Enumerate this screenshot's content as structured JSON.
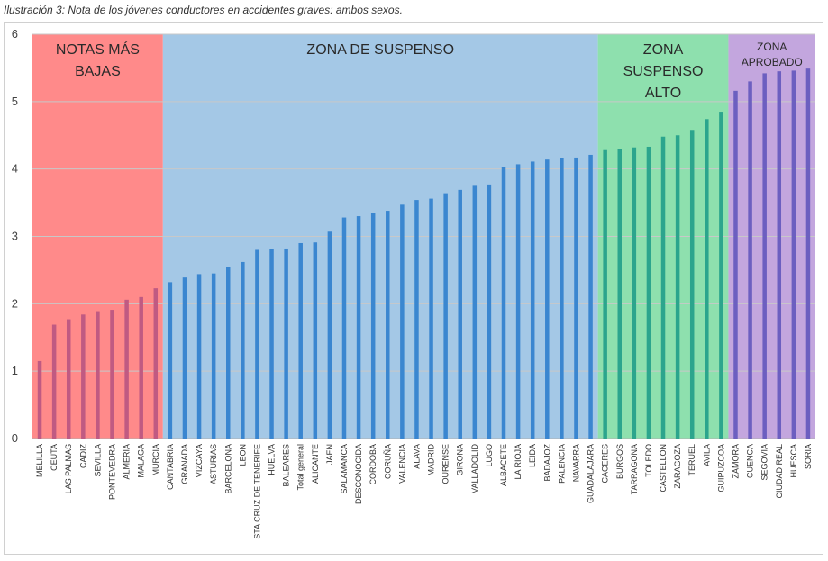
{
  "caption": "Ilustración 3: Nota de los jóvenes conductores en accidentes graves: ambos sexos.",
  "chart_data": {
    "type": "bar",
    "title": "Ilustración 3: Nota de los jóvenes conductores en accidentes graves: ambos sexos.",
    "xlabel": "",
    "ylabel": "",
    "ylim": [
      0,
      6
    ],
    "yticks": [
      0,
      1,
      2,
      3,
      4,
      5,
      6
    ],
    "grid": true,
    "categories": [
      "MELILLA",
      "CEUTA",
      "LAS PALMAS",
      "CADIZ",
      "SEVILLA",
      "PONTEVEDRA",
      "ALMERIA",
      "MALAGA",
      "MURCIA",
      "CANTABRIA",
      "GRANADA",
      "VIZCAYA",
      "ASTURIAS",
      "BARCELONA",
      "LEON",
      "STA CRUZ DE TENERIFE",
      "HUELVA",
      "BALEARES",
      "Total general",
      "ALICANTE",
      "JAEN",
      "SALAMANCA",
      "DESCONOCIDA",
      "CORDOBA",
      "CORUÑA",
      "VALENCIA",
      "ALAVA",
      "MADRID",
      "OURENSE",
      "GIRONA",
      "VALLADOLID",
      "LUGO",
      "ALBACETE",
      "LA RIOJA",
      "LEIDA",
      "BADAJOZ",
      "PALENCIA",
      "NAVARRA",
      "GUADALAJARA",
      "CACERES",
      "BURGOS",
      "TARRAGONA",
      "TOLEDO",
      "CASTELLON",
      "ZARAGOZA",
      "TERUEL",
      "AVILA",
      "GUIPUZCOA",
      "ZAMORA",
      "CUENCA",
      "SEGOVIA",
      "CIUDAD REAL",
      "HUESCA",
      "SORIA"
    ],
    "values": [
      1.15,
      1.69,
      1.77,
      1.84,
      1.89,
      1.91,
      2.06,
      2.1,
      2.23,
      2.32,
      2.39,
      2.44,
      2.45,
      2.54,
      2.62,
      2.8,
      2.81,
      2.82,
      2.9,
      2.91,
      3.07,
      3.28,
      3.3,
      3.35,
      3.38,
      3.47,
      3.54,
      3.56,
      3.64,
      3.69,
      3.75,
      3.77,
      4.03,
      4.07,
      4.11,
      4.14,
      4.16,
      4.17,
      4.21,
      4.28,
      4.3,
      4.32,
      4.33,
      4.48,
      4.5,
      4.58,
      4.74,
      4.85,
      5.16,
      5.3,
      5.42,
      5.45,
      5.46,
      5.49
    ],
    "zones": [
      {
        "label": "NOTAS MÁS BAJAS",
        "lines": [
          "NOTAS MÁS",
          "BAJAS"
        ],
        "start": 0,
        "end": 8,
        "fill": "#ff8a8a",
        "bar": "#c05a82"
      },
      {
        "label": "ZONA DE SUSPENSO",
        "lines": [
          "ZONA DE SUSPENSO"
        ],
        "start": 9,
        "end": 38,
        "fill": "#a4c8e6",
        "bar": "#3a86d0"
      },
      {
        "label": "ZONA SUSPENSO ALTO",
        "lines": [
          "ZONA",
          "SUSPENSO",
          "ALTO"
        ],
        "start": 39,
        "end": 47,
        "fill": "#8ee0ae",
        "bar": "#2ca58d"
      },
      {
        "label": "ZONA APROBADO",
        "lines": [
          "ZONA",
          "APROBADO"
        ],
        "start": 48,
        "end": 53,
        "fill": "#c3a6de",
        "bar": "#6c5fc0"
      }
    ],
    "colors": {
      "grid": "#c8c8c8",
      "axis": "#b0b0b0"
    }
  }
}
